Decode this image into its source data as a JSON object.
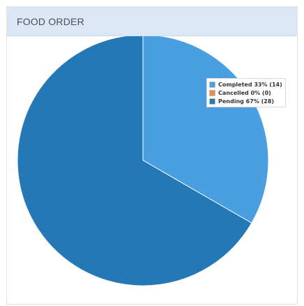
{
  "panel": {
    "title": "FOOD ORDER"
  },
  "colors": {
    "header_bg": "#dbe7f4",
    "completed": "#4a9fe0",
    "cancelled": "#f28a4b",
    "pending": "#2378b5"
  },
  "chart_data": {
    "type": "pie",
    "title": "FOOD ORDER",
    "slices": [
      {
        "label": "Completed",
        "percent": 33,
        "count": 14,
        "color": "#4a9fe0",
        "legend": "Completed 33% (14)"
      },
      {
        "label": "Cancelled",
        "percent": 0,
        "count": 0,
        "color": "#f28a4b",
        "legend": "Cancelled 0% (0)"
      },
      {
        "label": "Pending",
        "percent": 67,
        "count": 28,
        "color": "#2378b5",
        "legend": "Pending 67% (28)"
      }
    ],
    "start_angle": "12 o'clock",
    "direction": "clockwise",
    "legend_position": "top-right"
  }
}
